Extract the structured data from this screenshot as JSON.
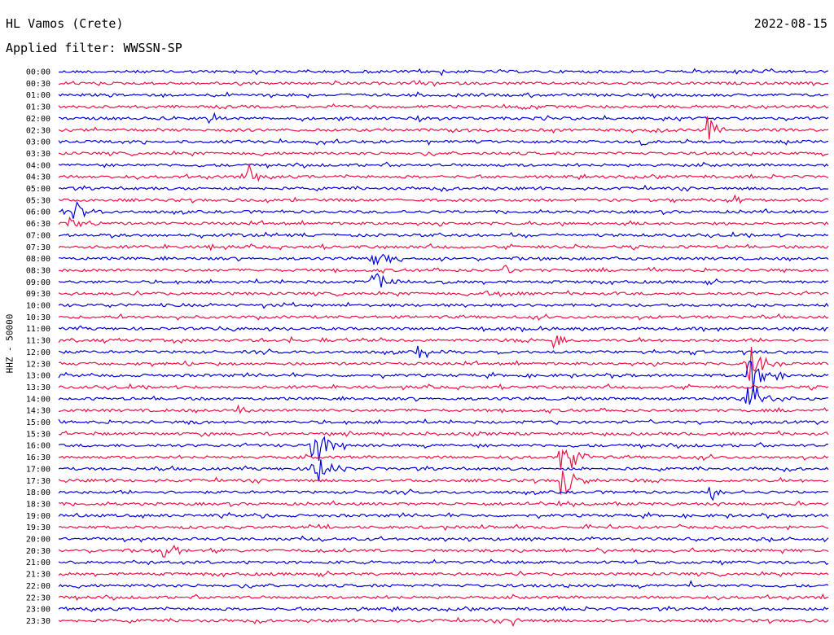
{
  "header": {
    "station": "HL Vamos (Crete)",
    "date": "2022-08-15",
    "filter": "Applied filter: WWSSN-SP"
  },
  "colors": {
    "trace_even": "#0000dd",
    "trace_odd": "#ee1144",
    "text": "#000000"
  },
  "chart_data": {
    "type": "line",
    "title": "HL Vamos (Crete)",
    "ylabel": "HHZ - 50000",
    "xlabel": "",
    "series_layout": "helicorder, one trace per 30 minutes, colors alternate",
    "time_labels": [
      "00:00",
      "00:30",
      "01:00",
      "01:30",
      "02:00",
      "02:30",
      "03:00",
      "03:30",
      "04:00",
      "04:30",
      "05:00",
      "05:30",
      "06:00",
      "06:30",
      "07:00",
      "07:30",
      "08:00",
      "08:30",
      "09:00",
      "09:30",
      "10:00",
      "10:30",
      "11:00",
      "11:30",
      "12:00",
      "12:30",
      "13:00",
      "13:30",
      "14:00",
      "14:30",
      "15:00",
      "15:30",
      "16:00",
      "16:30",
      "17:00",
      "17:30",
      "18:00",
      "18:30",
      "19:00",
      "19:30",
      "20:00",
      "20:30",
      "21:00",
      "21:30",
      "22:00",
      "22:30",
      "23:00",
      "23:30"
    ],
    "events": [
      {
        "row": 0,
        "pos": 0.497,
        "amp": 5,
        "dur": 0.01
      },
      {
        "row": 4,
        "pos": 0.196,
        "amp": 8,
        "dur": 0.02
      },
      {
        "row": 4,
        "pos": 0.467,
        "amp": 6,
        "dur": 0.02
      },
      {
        "row": 5,
        "pos": 0.842,
        "amp": 22,
        "dur": 0.03
      },
      {
        "row": 6,
        "pos": 0.758,
        "amp": 6,
        "dur": 0.02
      },
      {
        "row": 9,
        "pos": 0.246,
        "amp": 18,
        "dur": 0.025
      },
      {
        "row": 11,
        "pos": 0.88,
        "amp": 8,
        "dur": 0.02
      },
      {
        "row": 12,
        "pos": 0.02,
        "amp": 12,
        "dur": 0.05
      },
      {
        "row": 13,
        "pos": 0.015,
        "amp": 16,
        "dur": 0.04
      },
      {
        "row": 15,
        "pos": 0.196,
        "amp": 6,
        "dur": 0.02
      },
      {
        "row": 16,
        "pos": 0.408,
        "amp": 14,
        "dur": 0.06
      },
      {
        "row": 17,
        "pos": 0.58,
        "amp": 10,
        "dur": 0.02
      },
      {
        "row": 18,
        "pos": 0.408,
        "amp": 12,
        "dur": 0.06
      },
      {
        "row": 19,
        "pos": 0.556,
        "amp": 10,
        "dur": 0.04
      },
      {
        "row": 23,
        "pos": 0.301,
        "amp": 8,
        "dur": 0.015
      },
      {
        "row": 23,
        "pos": 0.643,
        "amp": 18,
        "dur": 0.025
      },
      {
        "row": 24,
        "pos": 0.468,
        "amp": 14,
        "dur": 0.03
      },
      {
        "row": 25,
        "pos": 0.896,
        "amp": 30,
        "dur": 0.05
      },
      {
        "row": 26,
        "pos": 0.896,
        "amp": 26,
        "dur": 0.06
      },
      {
        "row": 28,
        "pos": 0.896,
        "amp": 26,
        "dur": 0.06
      },
      {
        "row": 29,
        "pos": 0.232,
        "amp": 10,
        "dur": 0.025
      },
      {
        "row": 30,
        "pos": 0.177,
        "amp": 7,
        "dur": 0.015
      },
      {
        "row": 32,
        "pos": 0.33,
        "amp": 30,
        "dur": 0.06
      },
      {
        "row": 33,
        "pos": 0.653,
        "amp": 30,
        "dur": 0.05
      },
      {
        "row": 34,
        "pos": 0.33,
        "amp": 24,
        "dur": 0.05
      },
      {
        "row": 35,
        "pos": 0.653,
        "amp": 24,
        "dur": 0.05
      },
      {
        "row": 36,
        "pos": 0.847,
        "amp": 12,
        "dur": 0.03
      },
      {
        "row": 38,
        "pos": 0.266,
        "amp": 6,
        "dur": 0.015
      },
      {
        "row": 41,
        "pos": 0.137,
        "amp": 16,
        "dur": 0.04
      },
      {
        "row": 41,
        "pos": 0.2,
        "amp": 8,
        "dur": 0.02
      },
      {
        "row": 42,
        "pos": 0.85,
        "amp": 6,
        "dur": 0.015
      },
      {
        "row": 44,
        "pos": 0.822,
        "amp": 6,
        "dur": 0.015
      },
      {
        "row": 46,
        "pos": 0.389,
        "amp": 5,
        "dur": 0.015
      },
      {
        "row": 47,
        "pos": 0.591,
        "amp": 8,
        "dur": 0.015
      }
    ]
  }
}
